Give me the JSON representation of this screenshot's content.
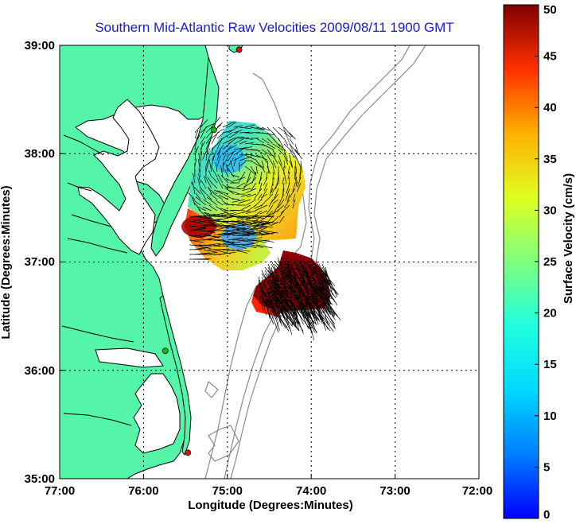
{
  "chart_data": {
    "type": "map",
    "title": "Southern Mid-Atlantic Raw Velocities 2009/08/11 1900 GMT",
    "xlabel": "Longitude (Degrees:Minutes)",
    "ylabel": "Latitude (Degrees:Minutes)",
    "x_ticks": [
      "77:00",
      "76:00",
      "75:00",
      "74:00",
      "73:00",
      "72:00"
    ],
    "y_ticks": [
      "39:00",
      "38:00",
      "37:00",
      "36:00",
      "35:00"
    ],
    "xlim": [
      -77,
      -72
    ],
    "ylim": [
      35,
      39
    ],
    "grid": true,
    "colorbar": {
      "label": "Surface Velocity (cm/s)",
      "range": [
        0,
        50
      ],
      "ticks": [
        "0",
        "5",
        "10",
        "15",
        "20",
        "25",
        "30",
        "35",
        "40",
        "45",
        "50"
      ],
      "colormap": "jet"
    },
    "hf_radar_sites": [
      {
        "lon": -74.86,
        "lat": 38.96,
        "color": "#e01010"
      },
      {
        "lon": -75.16,
        "lat": 38.22,
        "color": "#10c010"
      },
      {
        "lon": -75.74,
        "lat": 36.18,
        "color": "#10c010"
      },
      {
        "lon": -75.47,
        "lat": 35.24,
        "color": "#e01010"
      }
    ]
  },
  "colors": {
    "land": "#54f5a8",
    "coast_line": "#000000",
    "bathymetry": "#8a8a8a",
    "title": "#1a1ad8"
  }
}
